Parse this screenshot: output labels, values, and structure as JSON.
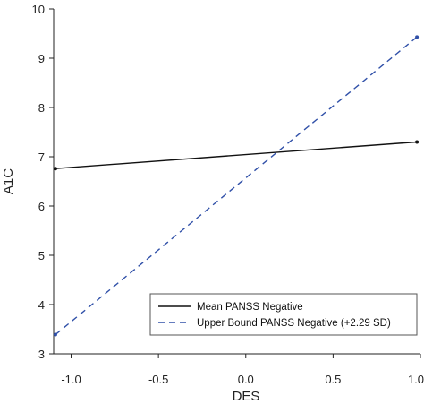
{
  "chart_data": {
    "type": "line",
    "title": "",
    "xlabel": "DES",
    "ylabel": "A1C",
    "xlim": [
      -1.1,
      1.0
    ],
    "ylim": [
      3,
      10
    ],
    "xticks": [
      -1.0,
      -0.5,
      0.0,
      0.5,
      1.0
    ],
    "xtick_labels": [
      "-1.0",
      "-0.5",
      "0.0",
      "0.5",
      "1.0"
    ],
    "yticks": [
      3,
      4,
      5,
      6,
      7,
      8,
      9,
      10
    ],
    "ytick_labels": [
      "3",
      "4",
      "5",
      "6",
      "7",
      "8",
      "9",
      "10"
    ],
    "grid": false,
    "legend_position": "bottom-right",
    "series": [
      {
        "name": "Mean PANSS Negative",
        "style": "solid",
        "color": "#111111",
        "x": [
          -1.09,
          0.98
        ],
        "y": [
          6.76,
          7.3
        ]
      },
      {
        "name": "Upper Bound PANSS Negative (+2.29  SD)",
        "style": "dashed",
        "color": "#3050a8",
        "x": [
          -1.09,
          0.98
        ],
        "y": [
          3.39,
          9.43
        ]
      }
    ]
  }
}
